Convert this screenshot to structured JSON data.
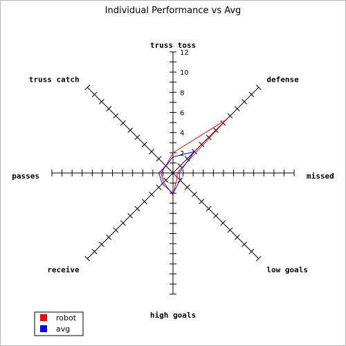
{
  "chart_data": {
    "type": "radar",
    "title": "Individual Performance vs Avg",
    "axes": [
      "truss toss",
      "defense",
      "missed",
      "low goals",
      "high goals",
      "receive",
      "passes",
      "truss catch"
    ],
    "r_range": [
      0,
      12
    ],
    "r_ticks": [
      "2",
      "4",
      "6",
      "8",
      "10",
      "12"
    ],
    "legend_position": "bottom-left",
    "series": [
      {
        "name": "robot",
        "color": "#ff0000",
        "values": [
          2,
          7.5,
          0.4,
          0.6,
          2.2,
          1.3,
          1.2,
          1.0
        ]
      },
      {
        "name": "avg",
        "color": "#0000ff",
        "values": [
          1.6,
          3.0,
          0.6,
          1.0,
          2.0,
          1.5,
          1.4,
          1.0
        ]
      }
    ]
  }
}
